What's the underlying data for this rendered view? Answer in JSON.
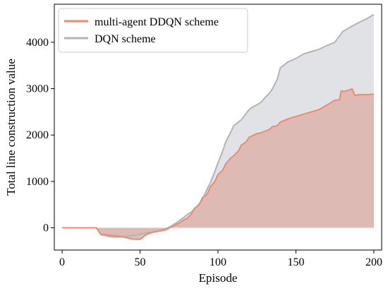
{
  "chart_data": {
    "type": "area",
    "title": "",
    "xlabel": "Episode",
    "ylabel": "Total line construction value",
    "xlim": [
      -5,
      205
    ],
    "ylim": [
      -480,
      4820
    ],
    "x_ticks": [
      0,
      50,
      100,
      150,
      200
    ],
    "y_ticks": [
      0,
      1000,
      2000,
      3000,
      4000
    ],
    "grid": false,
    "legend_position": "top-left",
    "fill_baseline": 0,
    "series": [
      {
        "name": "DQN scheme",
        "line_color": "#b3b3b8",
        "fill_color": "#dcdde0",
        "x": [
          0,
          22,
          25,
          28,
          30,
          33,
          36,
          40,
          45,
          50,
          55,
          60,
          65,
          68,
          70,
          73,
          75,
          78,
          80,
          83,
          85,
          87,
          90,
          92,
          95,
          97,
          100,
          103,
          105,
          108,
          110,
          112,
          115,
          117,
          120,
          122,
          125,
          128,
          130,
          133,
          135,
          138,
          140,
          142,
          145,
          148,
          150,
          155,
          160,
          165,
          170,
          175,
          180,
          185,
          190,
          195,
          200
        ],
        "values": [
          0,
          0,
          -150,
          -170,
          -190,
          -200,
          -200,
          -190,
          -170,
          -140,
          -110,
          -80,
          -30,
          0,
          40,
          100,
          150,
          220,
          280,
          340,
          410,
          480,
          600,
          760,
          970,
          1130,
          1400,
          1650,
          1850,
          2050,
          2200,
          2250,
          2330,
          2420,
          2550,
          2600,
          2650,
          2720,
          2800,
          2900,
          3000,
          3200,
          3450,
          3500,
          3580,
          3620,
          3650,
          3750,
          3800,
          3850,
          3930,
          4000,
          4230,
          4330,
          4420,
          4500,
          4600
        ]
      },
      {
        "name": "multi-agent DDQN scheme",
        "line_color": "#ef8a6f",
        "fill_color": "#dcb3ac",
        "x": [
          0,
          22,
          23,
          25,
          28,
          30,
          33,
          36,
          40,
          43,
          46,
          50,
          53,
          55,
          58,
          62,
          65,
          68,
          70,
          72,
          75,
          78,
          80,
          83,
          85,
          88,
          90,
          93,
          95,
          98,
          100,
          103,
          105,
          108,
          110,
          113,
          115,
          118,
          120,
          123,
          125,
          128,
          130,
          133,
          135,
          138,
          140,
          143,
          145,
          148,
          150,
          155,
          160,
          165,
          170,
          175,
          178,
          179,
          181,
          183,
          185,
          186,
          188,
          190,
          195,
          200
        ],
        "values": [
          0,
          0,
          -50,
          -150,
          -150,
          -160,
          -170,
          -180,
          -200,
          -230,
          -245,
          -250,
          -170,
          -130,
          -100,
          -70,
          -60,
          -20,
          20,
          50,
          100,
          170,
          200,
          300,
          420,
          500,
          650,
          720,
          880,
          1000,
          1150,
          1240,
          1380,
          1500,
          1550,
          1650,
          1780,
          1850,
          1950,
          2000,
          2030,
          2050,
          2080,
          2120,
          2180,
          2200,
          2280,
          2320,
          2350,
          2380,
          2400,
          2450,
          2500,
          2550,
          2650,
          2750,
          2760,
          2950,
          2940,
          2960,
          2980,
          3000,
          2850,
          2870,
          2870,
          2880
        ]
      }
    ]
  }
}
